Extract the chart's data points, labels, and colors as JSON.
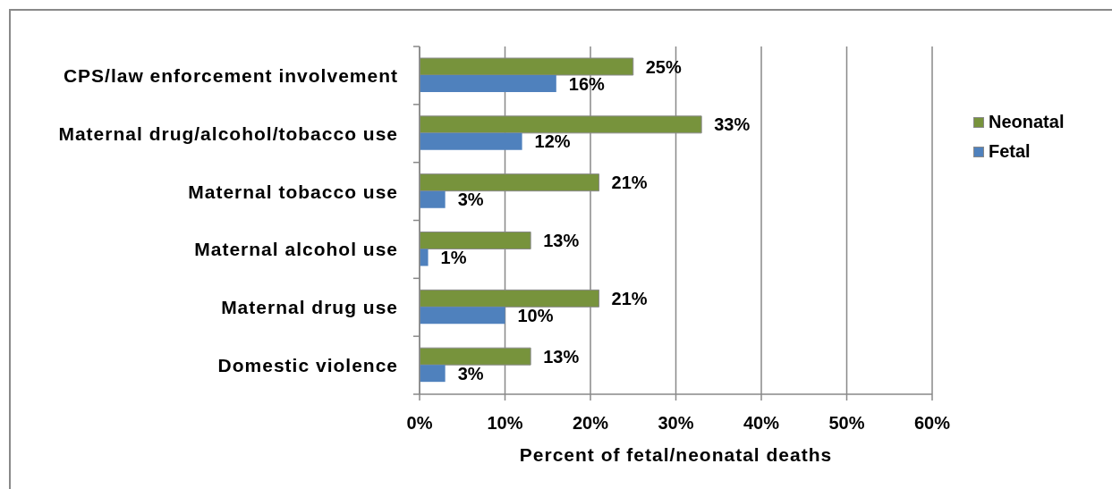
{
  "chart_data": {
    "type": "bar",
    "orientation": "horizontal",
    "categories": [
      "CPS/law enforcement involvement",
      "Maternal drug/alcohol/tobacco use",
      "Maternal tobacco use",
      "Maternal alcohol use",
      "Maternal drug use",
      "Domestic violence"
    ],
    "series": [
      {
        "name": "Neonatal",
        "color": "#77933c",
        "values": [
          25,
          33,
          21,
          13,
          21,
          13
        ],
        "value_labels": [
          "25%",
          "33%",
          "21%",
          "13%",
          "21%",
          "13%"
        ]
      },
      {
        "name": "Fetal",
        "color": "#4f81bd",
        "values": [
          16,
          12,
          3,
          1,
          10,
          3
        ],
        "value_labels": [
          "16%",
          "12%",
          "3%",
          "1%",
          "10%",
          "3%"
        ]
      }
    ],
    "xlabel": "Percent of fetal/neonatal deaths",
    "xlim": [
      0,
      60
    ],
    "xticks": [
      {
        "value": 0,
        "label": "0%"
      },
      {
        "value": 10,
        "label": "10%"
      },
      {
        "value": 20,
        "label": "20%"
      },
      {
        "value": 30,
        "label": "30%"
      },
      {
        "value": 40,
        "label": "40%"
      },
      {
        "value": 50,
        "label": "50%"
      },
      {
        "value": 60,
        "label": "60%"
      }
    ],
    "grid": "x",
    "legend": "top right"
  }
}
